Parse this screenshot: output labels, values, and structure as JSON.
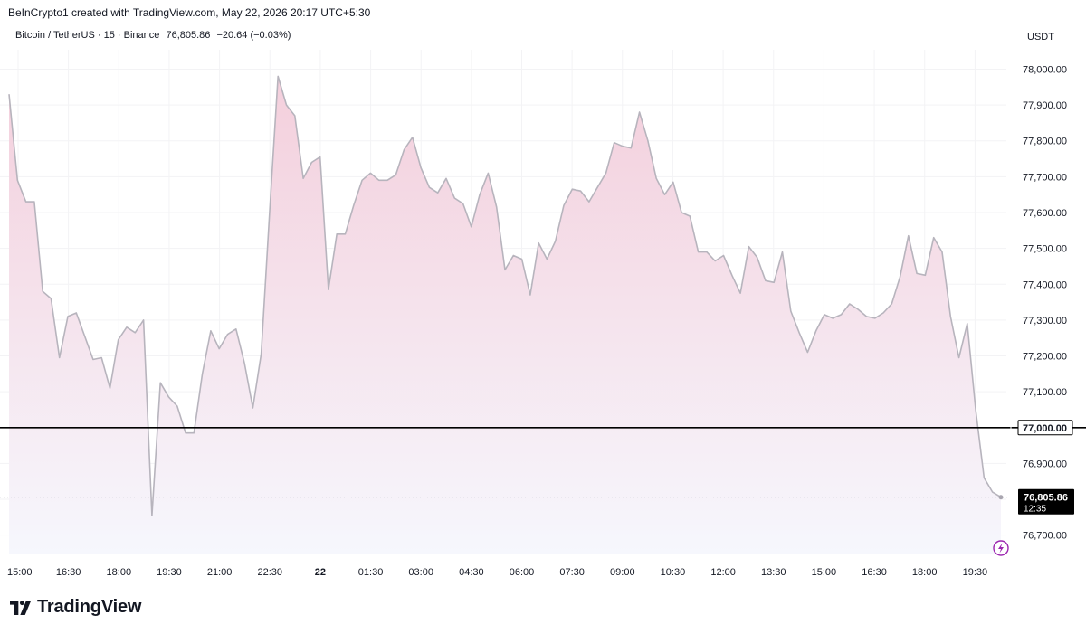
{
  "header": {
    "credit": "BeInCrypto1 created with TradingView.com, May 22, 2026 20:17 UTC+5:30",
    "symbol": "Bitcoin / TetherUS · 15 · Binance",
    "price": "76,805.86",
    "change": "−20.64 (−0.03%)",
    "currency": "USDT"
  },
  "brand": {
    "name": "TradingView"
  },
  "colors": {
    "line": "#b7b4bd",
    "fill_top": "#f4cfdc",
    "fill_bottom": "#f6f7fd",
    "level_line": "#000000",
    "price_label_bg": "#000000",
    "alert_icon": "#9c27b0"
  },
  "chart_data": {
    "type": "area",
    "ylim": [
      76650,
      78050
    ],
    "yticks": [
      76700,
      76800,
      76900,
      77000,
      77100,
      77200,
      77300,
      77400,
      77500,
      77600,
      77700,
      77800,
      77900,
      78000
    ],
    "ytick_labels": [
      "76,700.00",
      "76,800.00",
      "76,900.00",
      "77,000.00",
      "77,100.00",
      "77,200.00",
      "77,300.00",
      "77,400.00",
      "77,500.00",
      "77,600.00",
      "77,700.00",
      "77,800.00",
      "77,900.00",
      "78,000.00"
    ],
    "xtick_labels": [
      "15:00",
      "16:30",
      "18:00",
      "19:30",
      "21:00",
      "22:30",
      "22",
      "01:30",
      "03:00",
      "04:30",
      "06:00",
      "07:30",
      "09:00",
      "10:30",
      "12:00",
      "13:30",
      "15:00",
      "16:30",
      "18:00",
      "19:30"
    ],
    "bold_xtick": "22",
    "horizontal_level": {
      "value": 77000,
      "label": "77,000.00"
    },
    "last_price": {
      "value": 76805.86,
      "label": "76,805.86",
      "countdown": "12:35"
    },
    "values": [
      77930,
      77690,
      77630,
      77630,
      77380,
      77360,
      77195,
      77310,
      77320,
      77255,
      77190,
      77195,
      77110,
      77245,
      77280,
      77265,
      77300,
      76755,
      77125,
      77085,
      77060,
      76985,
      76985,
      77150,
      77270,
      77220,
      77260,
      77275,
      77180,
      77055,
      77205,
      77600,
      77980,
      77900,
      77870,
      77695,
      77740,
      77755,
      77385,
      77540,
      77540,
      77620,
      77690,
      77710,
      77690,
      77690,
      77705,
      77775,
      77810,
      77725,
      77670,
      77655,
      77695,
      77640,
      77625,
      77560,
      77650,
      77710,
      77615,
      77440,
      77480,
      77470,
      77370,
      77515,
      77470,
      77520,
      77620,
      77665,
      77660,
      77630,
      77670,
      77710,
      77795,
      77785,
      77780,
      77880,
      77800,
      77695,
      77650,
      77685,
      77600,
      77590,
      77490,
      77490,
      77465,
      77480,
      77425,
      77375,
      77505,
      77475,
      77410,
      77405,
      77490,
      77325,
      77265,
      77210,
      77270,
      77315,
      77305,
      77315,
      77345,
      77330,
      77310,
      77305,
      77320,
      77345,
      77420,
      77535,
      77430,
      77425,
      77530,
      77490,
      77310,
      77195,
      77290,
      77050,
      76860,
      76820,
      76806
    ]
  }
}
